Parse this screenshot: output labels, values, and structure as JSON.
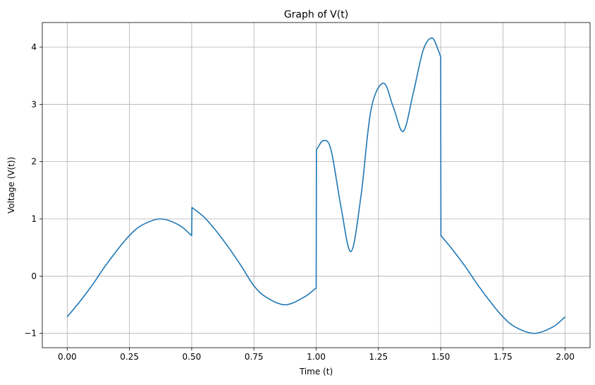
{
  "chart_data": {
    "type": "line",
    "title": "Graph of V(t)",
    "xlabel": "Time (t)",
    "ylabel": "Voltage (V(t))",
    "xlim": [
      -0.1,
      2.1
    ],
    "ylim": [
      -1.25,
      4.43
    ],
    "grid": true,
    "legend": "none",
    "xticks": [
      0.0,
      0.25,
      0.5,
      0.75,
      1.0,
      1.25,
      1.5,
      1.75,
      2.0
    ],
    "xtick_labels": [
      "0.00",
      "0.25",
      "0.50",
      "0.75",
      "1.00",
      "1.25",
      "1.50",
      "1.75",
      "2.00"
    ],
    "yticks": [
      -1,
      0,
      1,
      2,
      3,
      4
    ],
    "ytick_labels": [
      "−1",
      "0",
      "1",
      "2",
      "3",
      "4"
    ],
    "series": [
      {
        "color": "#1f77b4",
        "x": [
          0.0,
          0.05,
          0.1,
          0.15,
          0.2,
          0.25,
          0.3,
          0.375,
          0.45,
          0.499,
          0.5,
          0.501,
          0.55,
          0.6,
          0.65,
          0.7,
          0.75,
          0.8,
          0.875,
          0.95,
          0.999,
          1.0,
          1.001,
          1.03,
          1.06,
          1.1,
          1.14,
          1.18,
          1.22,
          1.27,
          1.31,
          1.35,
          1.39,
          1.43,
          1.465,
          1.49,
          1.499,
          1.5,
          1.501,
          1.55,
          1.6,
          1.65,
          1.7,
          1.75,
          1.8,
          1.875,
          1.95,
          2.0
        ],
        "y": [
          -0.71,
          -0.45,
          -0.16,
          0.16,
          0.45,
          0.71,
          0.89,
          1.0,
          0.89,
          0.71,
          0.71,
          1.2,
          1.03,
          0.78,
          0.49,
          0.17,
          -0.17,
          -0.37,
          -0.5,
          -0.37,
          -0.21,
          -0.21,
          2.21,
          2.37,
          2.2,
          1.2,
          0.43,
          1.4,
          2.9,
          3.37,
          2.95,
          2.53,
          3.2,
          3.95,
          4.16,
          3.95,
          3.84,
          3.84,
          0.71,
          0.45,
          0.16,
          -0.16,
          -0.45,
          -0.71,
          -0.89,
          -1.0,
          -0.89,
          -0.71
        ]
      }
    ]
  }
}
